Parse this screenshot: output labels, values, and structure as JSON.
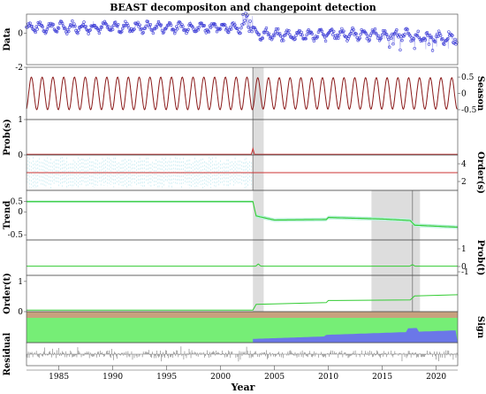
{
  "chart_data": {
    "type": "line",
    "title": "BEAST decompositon and changepoint detection",
    "xlabel": "Year",
    "xlim": [
      1982,
      2022
    ],
    "x_ticks": [
      "1985",
      "1990",
      "1995",
      "2000",
      "2005",
      "2010",
      "2015",
      "2020"
    ],
    "panels": [
      {
        "id": "data",
        "ylabel": "Data",
        "side": "left",
        "ylim": [
          -2,
          1.2
        ],
        "ticks": [
          "0",
          "-2"
        ]
      },
      {
        "id": "season",
        "ylabel": "Season",
        "side": "right",
        "ylim": [
          -0.8,
          0.8
        ],
        "ticks": [
          "0.5",
          "0",
          "-0.5"
        ]
      },
      {
        "id": "prob_s",
        "ylabel": "Prob(s)",
        "side": "left",
        "ylim": [
          0,
          1
        ],
        "ticks": [
          "1",
          "0"
        ]
      },
      {
        "id": "order_s",
        "ylabel": "Order(s)",
        "side": "right",
        "ylim": [
          1,
          5
        ],
        "ticks": [
          "4",
          "2"
        ]
      },
      {
        "id": "trend",
        "ylabel": "Trend",
        "side": "left",
        "ylim": [
          -0.55,
          0.42
        ],
        "ticks": [
          "0.5",
          "0",
          "-0.5"
        ]
      },
      {
        "id": "prob_t",
        "ylabel": "Prob(t)",
        "side": "right",
        "ylim": [
          -0.5,
          1.5
        ],
        "ticks": [
          "1",
          "0",
          "-1"
        ]
      },
      {
        "id": "order_t",
        "ylabel": "Order(t)",
        "side": "left",
        "ylim": [
          0,
          1.2
        ],
        "ticks": [
          "1",
          "0"
        ]
      },
      {
        "id": "sign",
        "ylabel": "Sign",
        "side": "right",
        "ylim": [
          0,
          1
        ],
        "ticks": []
      },
      {
        "id": "residual",
        "ylabel": "Residual",
        "side": "left",
        "ylim": [
          -1,
          1
        ],
        "ticks": []
      }
    ],
    "seasonal_changepoints": [
      {
        "year": 2003.0,
        "prob": 0.18
      }
    ],
    "trend_changepoints": [
      {
        "year": 2003.5,
        "prob": 0.12
      },
      {
        "year": 2017.8,
        "prob": 0.08
      }
    ],
    "trend_segments": {
      "x": [
        1982,
        2003.0,
        2003.3,
        2005,
        2009.8,
        2010.0,
        2015,
        2017.6,
        2018.0,
        2022
      ],
      "y": [
        0.2,
        0.2,
        -0.08,
        -0.16,
        -0.15,
        -0.11,
        -0.14,
        -0.17,
        -0.26,
        -0.3
      ]
    },
    "order_t_segments": {
      "x": [
        1982,
        2003.0,
        2003.3,
        2009.8,
        2010.0,
        2017.6,
        2018.0,
        2022
      ],
      "y": [
        0.05,
        0.05,
        0.24,
        0.3,
        0.37,
        0.39,
        0.52,
        0.56
      ]
    },
    "season": {
      "amplitude": 0.5,
      "period_years": 1
    },
    "order_s_value": 3,
    "colors": {
      "data_points": "#3b3bd6",
      "data_line": "#b6b6f0",
      "season": "#8b1a1a",
      "prob": "#cc3333",
      "trend": "#33cc33",
      "trend_band": "#b8f0d8",
      "changepoint_band": "#dddddd",
      "changepoint_line": "#888888",
      "sign_positive": "#76ee76",
      "sign_negative": "#6b77e8",
      "sign_zero": "#c7a17e",
      "residual": "#777777"
    }
  }
}
